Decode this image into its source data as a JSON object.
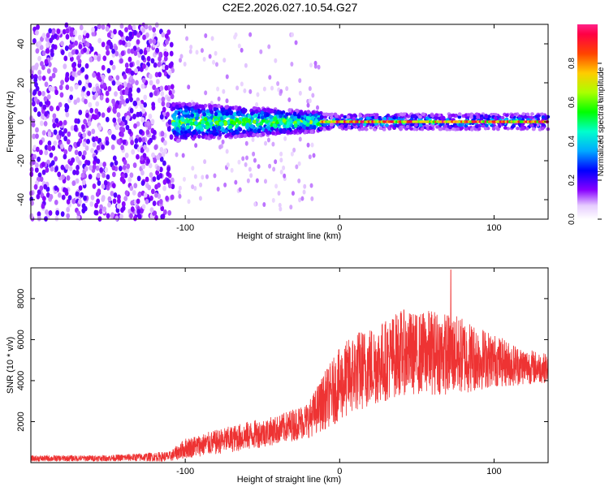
{
  "title": "C2E2.2026.027.10.54.G27",
  "chart_data": [
    {
      "type": "heatmap",
      "xlabel": "Height of straight line (km)",
      "ylabel": "Frequency (Hz)",
      "xlim": [
        -200,
        135
      ],
      "ylim": [
        -50,
        50
      ],
      "xticks": [
        -100,
        0,
        100
      ],
      "xtick_labels": [
        "-100",
        "0",
        "100"
      ],
      "yticks": [
        -40,
        -20,
        0,
        20,
        40
      ],
      "ytick_labels": [
        "-40",
        "-20",
        "0",
        "20",
        "40"
      ],
      "colorbar": {
        "label": "Normalized spectral amplitude",
        "range": [
          0,
          1
        ],
        "ticks": [
          0.0,
          0.2,
          0.4,
          0.6,
          0.8
        ],
        "tick_labels": [
          "0.0",
          "0.2",
          "0.4",
          "0.6",
          "0.8"
        ]
      },
      "regions": [
        {
          "name": "broadband noise",
          "x_range": [
            -200,
            -108
          ],
          "freq_range": [
            -50,
            50
          ],
          "amplitude": 0.15
        },
        {
          "name": "spread band",
          "x_range": [
            -108,
            -12
          ],
          "freq_range": [
            -10,
            10
          ],
          "amplitude": 0.35
        },
        {
          "name": "narrow carrier line",
          "x_range": [
            -12,
            135
          ],
          "freq_center": 0,
          "freq_width": 3,
          "amplitude": 0.95
        }
      ]
    },
    {
      "type": "line",
      "xlabel": "Height of straight line (km)",
      "ylabel": "SNR (10 * v/v)",
      "xlim": [
        -200,
        135
      ],
      "ylim": [
        0,
        9500
      ],
      "xticks": [
        -100,
        0,
        100
      ],
      "xtick_labels": [
        "-100",
        "0",
        "100"
      ],
      "yticks": [
        2000,
        4000,
        6000,
        8000
      ],
      "ytick_labels": [
        "2000",
        "4000",
        "6000",
        "8000"
      ],
      "series": [
        {
          "name": "SNR",
          "color": "#ee3333",
          "x": [
            -200,
            -150,
            -110,
            -100,
            -80,
            -60,
            -40,
            -20,
            -10,
            0,
            10,
            20,
            30,
            40,
            50,
            60,
            70,
            80,
            90,
            100,
            110,
            120,
            135
          ],
          "y": [
            200,
            220,
            300,
            700,
            1000,
            1300,
            1600,
            2100,
            3000,
            3800,
            4400,
            4700,
            5000,
            5400,
            5300,
            5400,
            5300,
            5200,
            5100,
            5000,
            4800,
            4700,
            4600
          ],
          "spread": [
            150,
            150,
            250,
            500,
            600,
            700,
            700,
            900,
            1400,
            1800,
            2000,
            2000,
            2000,
            2100,
            2000,
            2100,
            2000,
            1900,
            1600,
            1300,
            1100,
            900,
            700
          ],
          "peak": {
            "x": 72,
            "y": 9400
          }
        }
      ]
    }
  ]
}
